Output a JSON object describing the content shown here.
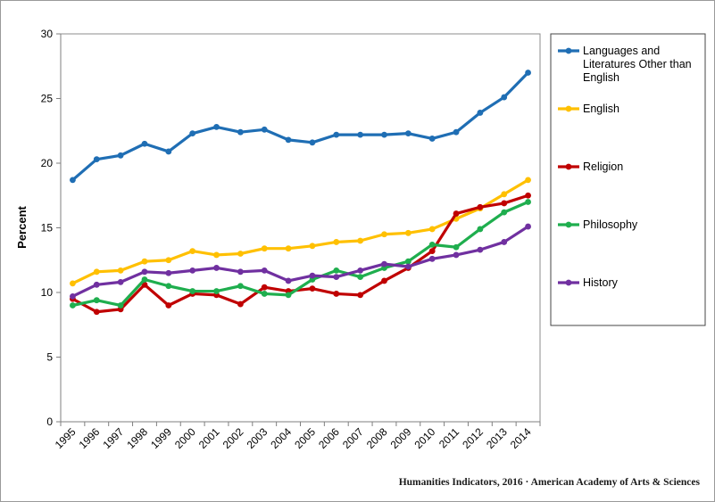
{
  "chart_data": {
    "type": "line",
    "title": "",
    "xlabel": "",
    "ylabel": "Percent",
    "ylim": [
      0,
      30
    ],
    "yticks": [
      0,
      5,
      10,
      15,
      20,
      25,
      30
    ],
    "grid": false,
    "legend_position": "right",
    "x": [
      "1995",
      "1996",
      "1997",
      "1998",
      "1999",
      "2000",
      "2001",
      "2002",
      "2003",
      "2004",
      "2005",
      "2006",
      "2007",
      "2008",
      "2009",
      "2010",
      "2011",
      "2012",
      "2013",
      "2014"
    ],
    "series": [
      {
        "name": "Languages and Literatures Other than English",
        "legend_lines": [
          "Languages and",
          "Literatures Other than",
          "English"
        ],
        "color": "#1f6eb4",
        "values": [
          18.7,
          20.3,
          20.6,
          21.5,
          20.9,
          22.3,
          22.8,
          22.4,
          22.6,
          21.8,
          21.6,
          22.2,
          22.2,
          22.2,
          22.3,
          21.9,
          22.4,
          23.9,
          25.1,
          27.0
        ]
      },
      {
        "name": "English",
        "legend_lines": [
          "English"
        ],
        "color": "#ffc000",
        "values": [
          10.7,
          11.6,
          11.7,
          12.4,
          12.5,
          13.2,
          12.9,
          13.0,
          13.4,
          13.4,
          13.6,
          13.9,
          14.0,
          14.5,
          14.6,
          14.9,
          15.7,
          16.5,
          17.6,
          18.7
        ]
      },
      {
        "name": "Religion",
        "legend_lines": [
          "Religion"
        ],
        "color": "#c00000",
        "values": [
          9.5,
          8.5,
          8.7,
          10.6,
          9.0,
          9.9,
          9.8,
          9.1,
          10.4,
          10.1,
          10.3,
          9.9,
          9.8,
          10.9,
          11.9,
          13.2,
          16.1,
          16.6,
          16.9,
          17.5
        ]
      },
      {
        "name": "Philosophy",
        "legend_lines": [
          "Philosophy"
        ],
        "color": "#1fae4e",
        "values": [
          9.0,
          9.4,
          9.0,
          11.0,
          10.5,
          10.1,
          10.1,
          10.5,
          9.9,
          9.8,
          11.0,
          11.7,
          11.2,
          11.9,
          12.4,
          13.7,
          13.5,
          14.9,
          16.2,
          17.0
        ]
      },
      {
        "name": "History",
        "legend_lines": [
          "History"
        ],
        "color": "#7030a0",
        "values": [
          9.7,
          10.6,
          10.8,
          11.6,
          11.5,
          11.7,
          11.9,
          11.6,
          11.7,
          10.9,
          11.3,
          11.2,
          11.7,
          12.2,
          12.0,
          12.6,
          12.9,
          13.3,
          13.9,
          15.1
        ]
      }
    ]
  },
  "source_note": "Humanities Indicators, 2016 · American Academy of Arts & Sciences"
}
